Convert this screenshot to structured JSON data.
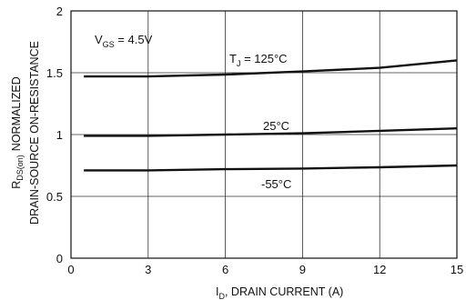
{
  "chart_data": {
    "type": "line",
    "title": "",
    "xlabel": {
      "prefix": "I",
      "sub": "D",
      "text": ", DRAIN CURRENT (A)"
    },
    "ylabel": {
      "line1_prefix": "R",
      "line1_sub": "DS(on)",
      "line1_text": "NORMALIZED",
      "line2": "DRAIN-SOURCE ON-RESISTANCE"
    },
    "xlim": [
      0,
      15
    ],
    "ylim": [
      0,
      2
    ],
    "xticks": [
      "0",
      "3",
      "6",
      "9",
      "12",
      "15"
    ],
    "yticks": [
      "0",
      "0.5",
      "1",
      "1.5",
      "2"
    ],
    "grid": true,
    "condition": {
      "prefix": "V",
      "sub": "GS",
      "text": " = 4.5V"
    },
    "series": [
      {
        "name": "125°C",
        "label": {
          "prefix": "T",
          "sub": "J",
          "text": " = 125°C"
        },
        "x": [
          0.5,
          3,
          6,
          9,
          12,
          15
        ],
        "y": [
          1.47,
          1.47,
          1.485,
          1.51,
          1.54,
          1.6
        ]
      },
      {
        "name": "25°C",
        "label": {
          "text": "25°C"
        },
        "x": [
          0.5,
          3,
          6,
          9,
          12,
          15
        ],
        "y": [
          0.99,
          0.99,
          1.0,
          1.01,
          1.03,
          1.05
        ]
      },
      {
        "name": "-55°C",
        "label": {
          "text": "-55°C"
        },
        "x": [
          0.5,
          3,
          6,
          9,
          12,
          15
        ],
        "y": [
          0.71,
          0.71,
          0.72,
          0.725,
          0.735,
          0.75
        ]
      }
    ],
    "colors": {
      "line": "#111111",
      "grid": "#333333",
      "background": "#ffffff"
    }
  }
}
